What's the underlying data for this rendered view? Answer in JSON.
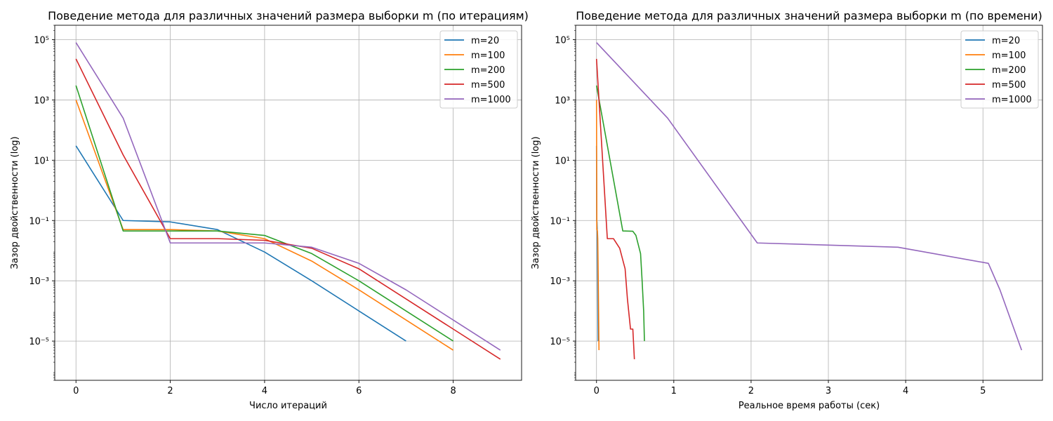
{
  "chart_data": [
    {
      "type": "line",
      "title": "Поведение метода для различных значений размера выборки m (по итерациям)",
      "xlabel": "Число итераций",
      "ylabel": "Зазор двойственности (log)",
      "yscale": "log",
      "xlim": [
        -0.45,
        9.45
      ],
      "ylim": [
        5e-07,
        300000.0
      ],
      "xticks": [
        "0",
        "2",
        "4",
        "6",
        "8"
      ],
      "yticks": [
        "10⁵",
        "10³",
        "10¹",
        "10⁻¹",
        "10⁻³",
        "10⁻⁵"
      ],
      "grid": true,
      "legend": "top-right",
      "series": [
        {
          "name": "m=20",
          "color": "#1f77b4",
          "x": [
            0,
            1,
            2,
            3,
            4,
            5,
            6,
            7
          ],
          "y": [
            30,
            0.1,
            0.09,
            0.05,
            0.009,
            0.001,
            0.0001,
            1e-05
          ]
        },
        {
          "name": "m=100",
          "color": "#ff7f0e",
          "x": [
            0,
            1,
            2,
            3,
            4,
            5,
            6,
            7,
            8
          ],
          "y": [
            1000,
            0.05,
            0.05,
            0.045,
            0.025,
            0.0045,
            0.0005,
            5e-05,
            5e-06
          ]
        },
        {
          "name": "m=200",
          "color": "#2ca02c",
          "x": [
            0,
            1,
            2,
            3,
            4,
            5,
            6,
            7,
            8
          ],
          "y": [
            3000,
            0.045,
            0.045,
            0.045,
            0.032,
            0.008,
            0.001,
            0.0001,
            1e-05
          ]
        },
        {
          "name": "m=500",
          "color": "#d62728",
          "x": [
            0,
            1,
            2,
            3,
            4,
            5,
            6,
            7,
            8,
            9
          ],
          "y": [
            23000,
            15,
            0.025,
            0.025,
            0.022,
            0.012,
            0.0025,
            0.00025,
            2.5e-05,
            2.5e-06
          ]
        },
        {
          "name": "m=1000",
          "color": "#9467bd",
          "x": [
            0,
            1,
            2,
            3,
            4,
            5,
            6,
            7,
            8,
            9
          ],
          "y": [
            80000,
            250,
            0.018,
            0.018,
            0.018,
            0.013,
            0.0038,
            0.0005,
            5e-05,
            5e-06
          ]
        }
      ]
    },
    {
      "type": "line",
      "title": "Поведение метода для различных значений размера выборки m (по времени)",
      "xlabel": "Реальное время работы (сек)",
      "ylabel": "Зазор двойственности (log)",
      "yscale": "log",
      "xlim": [
        -0.27,
        5.77
      ],
      "ylim": [
        5e-07,
        300000.0
      ],
      "xticks": [
        "0",
        "1",
        "2",
        "3",
        "4",
        "5"
      ],
      "yticks": [
        "10⁵",
        "10³",
        "10¹",
        "10⁻¹",
        "10⁻³",
        "10⁻⁵"
      ],
      "grid": true,
      "legend": "top-right",
      "series": [
        {
          "name": "m=20",
          "color": "#1f77b4",
          "x": [
            0,
            0.003,
            0.006,
            0.009,
            0.012,
            0.015,
            0.018,
            0.021
          ],
          "y": [
            30,
            0.1,
            0.09,
            0.05,
            0.009,
            0.001,
            0.0001,
            1e-05
          ]
        },
        {
          "name": "m=100",
          "color": "#ff7f0e",
          "x": [
            0,
            0.004,
            0.008,
            0.012,
            0.016,
            0.02,
            0.024,
            0.028,
            0.032
          ],
          "y": [
            1000,
            0.05,
            0.05,
            0.045,
            0.025,
            0.0045,
            0.0005,
            5e-05,
            5e-06
          ]
        },
        {
          "name": "m=200",
          "color": "#2ca02c",
          "x": [
            0,
            0.34,
            0.47,
            0.51,
            0.57,
            0.59,
            0.61,
            0.62
          ],
          "y": [
            3000,
            0.045,
            0.044,
            0.032,
            0.008,
            0.001,
            0.0001,
            1e-05
          ]
        },
        {
          "name": "m=500",
          "color": "#d62728",
          "x": [
            0,
            0.14,
            0.22,
            0.3,
            0.37,
            0.4,
            0.44,
            0.47,
            0.49
          ],
          "y": [
            23000,
            0.025,
            0.025,
            0.012,
            0.0025,
            0.00025,
            2.5e-05,
            2.5e-05,
            2.5e-06
          ]
        },
        {
          "name": "m=1000",
          "color": "#9467bd",
          "x": [
            0,
            0.92,
            2.08,
            3.9,
            5.07,
            5.22,
            5.5
          ],
          "y": [
            80000,
            250,
            0.018,
            0.013,
            0.0038,
            0.0005,
            5e-06
          ]
        }
      ]
    }
  ]
}
